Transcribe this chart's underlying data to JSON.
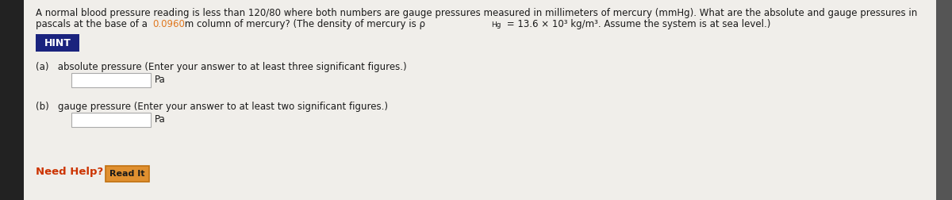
{
  "bg_color": "#3a3a3a",
  "content_bg": "#f0eeea",
  "left_bar_color": "#222222",
  "right_bar_color": "#555555",
  "text_color": "#1a1a1a",
  "title_line1": "A normal blood pressure reading is less than 120/80 where both numbers are gauge pressures measured in millimeters of mercury (mmHg). What are the absolute and gauge pressures in",
  "title_line2_before": "pascals at the base of a ",
  "title_highlight": "0.0960",
  "title_highlight_color": "#e07820",
  "title_line2_after_highlight": " m column of mercury? (The density of mercury is ρ",
  "title_sub": "Hg",
  "title_line2_end": " = 13.6 × 10³ kg/m³. Assume the system is at sea level.)",
  "hint_text": "HINT",
  "hint_bg": "#1a237e",
  "hint_text_color": "#ffffff",
  "part_a_label": "(a)   absolute pressure (Enter your answer to at least three significant figures.)",
  "part_b_label": "(b)   gauge pressure (Enter your answer to at least two significant figures.)",
  "pa_label": "Pa",
  "need_help_text": "Need Help?",
  "need_help_color": "#cc3300",
  "read_it_text": "Read It",
  "read_it_bg": "#e09030",
  "read_it_border": "#c07010",
  "read_it_text_color": "#1a1a1a",
  "input_box_color": "#ffffff",
  "input_box_border": "#aaaaaa",
  "font_size_body": 8.5,
  "font_size_small": 7.2
}
